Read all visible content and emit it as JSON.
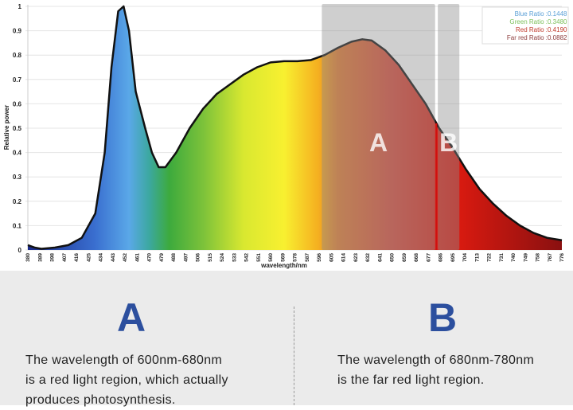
{
  "chart_data": {
    "type": "area",
    "title": "",
    "xlabel": "wavelength/nm",
    "ylabel": "Relative power",
    "xlim": [
      380,
      776
    ],
    "ylim": [
      0,
      1
    ],
    "yticks": [
      "0",
      "0.1",
      "0.2",
      "0.3",
      "0.4",
      "0.5",
      "0.6",
      "0.7",
      "0.8",
      "0.9",
      "1"
    ],
    "xticks": [
      "380",
      "389",
      "398",
      "407",
      "416",
      "425",
      "434",
      "443",
      "452",
      "461",
      "470",
      "479",
      "488",
      "497",
      "506",
      "515",
      "524",
      "533",
      "542",
      "551",
      "560",
      "569",
      "578",
      "587",
      "596",
      "605",
      "614",
      "623",
      "632",
      "641",
      "650",
      "659",
      "668",
      "677",
      "686",
      "695",
      "704",
      "713",
      "722",
      "731",
      "740",
      "749",
      "758",
      "767",
      "776"
    ],
    "x": [
      380,
      385,
      390,
      400,
      410,
      420,
      430,
      437,
      442,
      447,
      451,
      455,
      460,
      467,
      472,
      477,
      482,
      490,
      500,
      510,
      520,
      530,
      540,
      550,
      560,
      570,
      580,
      590,
      600,
      610,
      620,
      628,
      635,
      645,
      655,
      665,
      675,
      685,
      695,
      705,
      715,
      725,
      735,
      745,
      755,
      765,
      776
    ],
    "y": [
      0.02,
      0.01,
      0.005,
      0.01,
      0.02,
      0.05,
      0.15,
      0.4,
      0.75,
      0.98,
      1.0,
      0.9,
      0.65,
      0.5,
      0.4,
      0.34,
      0.34,
      0.4,
      0.5,
      0.58,
      0.64,
      0.68,
      0.72,
      0.75,
      0.77,
      0.775,
      0.775,
      0.78,
      0.8,
      0.83,
      0.855,
      0.865,
      0.86,
      0.82,
      0.76,
      0.68,
      0.6,
      0.5,
      0.42,
      0.33,
      0.25,
      0.19,
      0.14,
      0.1,
      0.07,
      0.05,
      0.04
    ],
    "regions": [
      {
        "label": "A",
        "from": 598,
        "to": 682
      },
      {
        "label": "B",
        "from": 684,
        "to": 700
      }
    ],
    "legend": [
      {
        "label": "Blue Ratio",
        "value": "0.1448",
        "color": "#5a9fd6"
      },
      {
        "label": "Green Ratio",
        "value": "0.3480",
        "color": "#7cbf5a"
      },
      {
        "label": "Red Ratio",
        "value": "0.4190",
        "color": "#c0392b"
      },
      {
        "label": "Far red Ratio",
        "value": "0.0882",
        "color": "#8b3a3a"
      }
    ],
    "legend_position": "top-right",
    "grid": true
  },
  "bottom": {
    "a_letter": "A",
    "a_text": [
      "The wavelength of 600nm-680nm",
      "is a red light region, which actually",
      "produces photosynthesis."
    ],
    "b_letter": "B",
    "b_text": [
      "The wavelength of 680nm-780nm",
      "is the far red light region."
    ]
  }
}
